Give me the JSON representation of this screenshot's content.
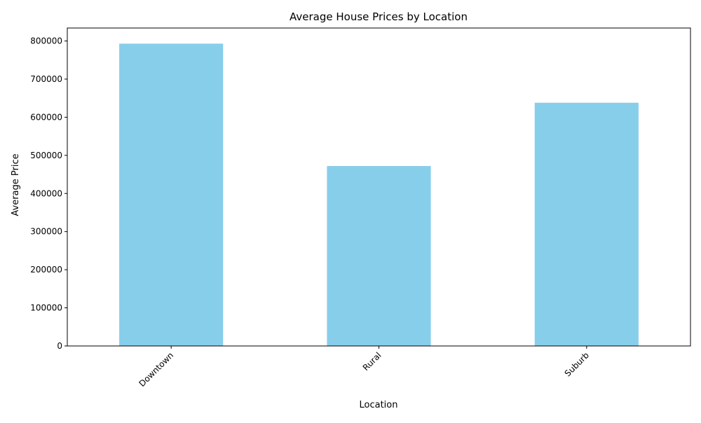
{
  "chart_data": {
    "type": "bar",
    "title": "Average House Prices by Location",
    "xlabel": "Location",
    "ylabel": "Average Price",
    "categories": [
      "Downtown",
      "Rural",
      "Suburb"
    ],
    "values": [
      793000,
      472000,
      638000
    ],
    "ylim": [
      0,
      834000
    ],
    "yticks": [
      0,
      100000,
      200000,
      300000,
      400000,
      500000,
      600000,
      700000,
      800000
    ],
    "bar_color": "#87CEEB",
    "axis_color": "#000000",
    "grid": false,
    "legend": false
  }
}
